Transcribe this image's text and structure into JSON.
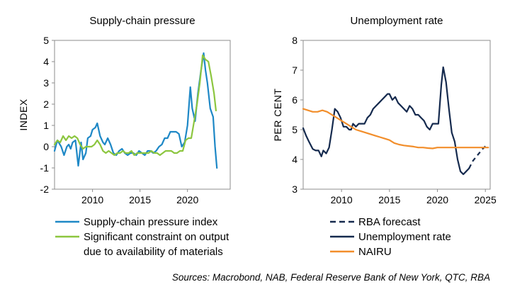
{
  "chart_data": [
    {
      "type": "line",
      "title": "Supply-chain pressure",
      "ylabel": "INDEX",
      "xlabel": "",
      "xlim": [
        2006,
        2024.5
      ],
      "ylim": [
        -2,
        5
      ],
      "x_ticks": [
        2010,
        2015,
        2020
      ],
      "y_ticks": [
        -2,
        -1,
        0,
        1,
        2,
        3,
        4,
        5
      ],
      "grid": false,
      "legend_position": "bottom",
      "series": [
        {
          "name": "Supply-chain pressure index",
          "color": "#1e88c6",
          "style": "solid",
          "points": [
            [
              2006.0,
              -0.2
            ],
            [
              2006.3,
              0.3
            ],
            [
              2006.7,
              0.0
            ],
            [
              2007.0,
              -0.4
            ],
            [
              2007.3,
              0.0
            ],
            [
              2007.5,
              0.1
            ],
            [
              2007.7,
              -0.1
            ],
            [
              2007.9,
              0.2
            ],
            [
              2008.2,
              0.3
            ],
            [
              2008.5,
              -0.9
            ],
            [
              2008.8,
              0.2
            ],
            [
              2009.0,
              -0.6
            ],
            [
              2009.3,
              -0.3
            ],
            [
              2009.5,
              0.4
            ],
            [
              2009.8,
              0.5
            ],
            [
              2010.0,
              0.8
            ],
            [
              2010.3,
              0.9
            ],
            [
              2010.5,
              1.1
            ],
            [
              2010.8,
              0.5
            ],
            [
              2011.1,
              0.2
            ],
            [
              2011.3,
              0.1
            ],
            [
              2011.6,
              0.4
            ],
            [
              2011.9,
              0.1
            ],
            [
              2012.2,
              -0.3
            ],
            [
              2012.5,
              -0.4
            ],
            [
              2012.8,
              -0.2
            ],
            [
              2013.1,
              -0.1
            ],
            [
              2013.4,
              -0.3
            ],
            [
              2013.7,
              -0.4
            ],
            [
              2014.0,
              -0.3
            ],
            [
              2014.3,
              -0.3
            ],
            [
              2014.6,
              -0.4
            ],
            [
              2014.9,
              -0.2
            ],
            [
              2015.2,
              -0.3
            ],
            [
              2015.5,
              -0.4
            ],
            [
              2015.8,
              -0.2
            ],
            [
              2016.1,
              -0.2
            ],
            [
              2016.4,
              -0.3
            ],
            [
              2016.7,
              -0.2
            ],
            [
              2017.0,
              0.0
            ],
            [
              2017.3,
              0.1
            ],
            [
              2017.6,
              0.4
            ],
            [
              2017.9,
              0.4
            ],
            [
              2018.2,
              0.7
            ],
            [
              2018.5,
              0.7
            ],
            [
              2018.8,
              0.7
            ],
            [
              2019.1,
              0.6
            ],
            [
              2019.4,
              0.0
            ],
            [
              2019.7,
              0.2
            ],
            [
              2020.0,
              1.0
            ],
            [
              2020.3,
              2.8
            ],
            [
              2020.5,
              1.8
            ],
            [
              2020.8,
              1.2
            ],
            [
              2021.1,
              2.5
            ],
            [
              2021.4,
              3.5
            ],
            [
              2021.7,
              4.4
            ],
            [
              2021.9,
              3.6
            ],
            [
              2022.1,
              3.0
            ],
            [
              2022.4,
              1.8
            ],
            [
              2022.7,
              1.4
            ],
            [
              2022.9,
              0.0
            ],
            [
              2023.1,
              -1.0
            ]
          ]
        },
        {
          "name": "Significant constraint on output due to availability of materials",
          "color": "#8cc63f",
          "style": "solid",
          "points": [
            [
              2006.0,
              0.1
            ],
            [
              2006.3,
              0.3
            ],
            [
              2006.6,
              0.2
            ],
            [
              2006.9,
              0.5
            ],
            [
              2007.2,
              0.3
            ],
            [
              2007.5,
              0.5
            ],
            [
              2007.8,
              0.4
            ],
            [
              2008.1,
              0.5
            ],
            [
              2008.4,
              0.4
            ],
            [
              2008.7,
              0.1
            ],
            [
              2009.0,
              -0.1
            ],
            [
              2009.3,
              0.0
            ],
            [
              2009.6,
              0.0
            ],
            [
              2009.9,
              0.0
            ],
            [
              2010.2,
              0.1
            ],
            [
              2010.5,
              0.3
            ],
            [
              2010.8,
              0.1
            ],
            [
              2011.1,
              -0.2
            ],
            [
              2011.4,
              -0.3
            ],
            [
              2011.7,
              -0.2
            ],
            [
              2012.0,
              -0.3
            ],
            [
              2012.3,
              -0.4
            ],
            [
              2012.6,
              -0.3
            ],
            [
              2012.9,
              -0.3
            ],
            [
              2013.2,
              -0.2
            ],
            [
              2013.5,
              -0.3
            ],
            [
              2013.8,
              -0.3
            ],
            [
              2014.1,
              -0.2
            ],
            [
              2014.4,
              -0.4
            ],
            [
              2014.7,
              -0.3
            ],
            [
              2015.0,
              -0.3
            ],
            [
              2015.3,
              -0.3
            ],
            [
              2015.6,
              -0.3
            ],
            [
              2015.9,
              -0.3
            ],
            [
              2016.2,
              -0.2
            ],
            [
              2016.5,
              -0.3
            ],
            [
              2016.8,
              -0.3
            ],
            [
              2017.1,
              -0.4
            ],
            [
              2017.4,
              -0.3
            ],
            [
              2017.7,
              -0.2
            ],
            [
              2018.0,
              -0.2
            ],
            [
              2018.3,
              -0.2
            ],
            [
              2018.6,
              -0.3
            ],
            [
              2018.9,
              -0.3
            ],
            [
              2019.2,
              -0.2
            ],
            [
              2019.5,
              -0.2
            ],
            [
              2019.8,
              0.3
            ],
            [
              2020.1,
              0.4
            ],
            [
              2020.4,
              0.4
            ],
            [
              2020.7,
              1.2
            ],
            [
              2021.0,
              2.0
            ],
            [
              2021.3,
              3.0
            ],
            [
              2021.6,
              4.3
            ],
            [
              2021.9,
              4.1
            ],
            [
              2022.2,
              4.0
            ],
            [
              2022.5,
              3.3
            ],
            [
              2022.8,
              2.5
            ],
            [
              2023.0,
              1.7
            ]
          ]
        }
      ],
      "legend": [
        {
          "lines": [
            "Supply-chain pressure index"
          ],
          "color": "#1e88c6",
          "style": "solid"
        },
        {
          "lines": [
            "Significant constraint on output",
            "due to availability of materials"
          ],
          "color": "#8cc63f",
          "style": "solid"
        }
      ]
    },
    {
      "type": "line",
      "title": "Unemployment rate",
      "ylabel": "PER CENT",
      "xlabel": "",
      "xlim": [
        2006,
        2025.5
      ],
      "ylim": [
        3,
        8
      ],
      "x_ticks": [
        2010,
        2015,
        2020,
        2025
      ],
      "y_ticks": [
        3,
        4,
        5,
        6,
        7,
        8
      ],
      "grid": false,
      "legend_position": "bottom",
      "series": [
        {
          "name": "RBA forecast",
          "color": "#152a4e",
          "style": "dashed",
          "points": [
            [
              2023.3,
              3.7
            ],
            [
              2023.7,
              3.95
            ],
            [
              2024.2,
              4.15
            ],
            [
              2024.7,
              4.35
            ],
            [
              2025.2,
              4.5
            ]
          ]
        },
        {
          "name": "Unemployment rate",
          "color": "#152a4e",
          "style": "solid",
          "points": [
            [
              2006.0,
              5.05
            ],
            [
              2006.3,
              4.8
            ],
            [
              2006.6,
              4.6
            ],
            [
              2007.0,
              4.35
            ],
            [
              2007.3,
              4.3
            ],
            [
              2007.6,
              4.3
            ],
            [
              2007.9,
              4.1
            ],
            [
              2008.1,
              4.3
            ],
            [
              2008.4,
              4.2
            ],
            [
              2008.7,
              4.4
            ],
            [
              2009.0,
              5.0
            ],
            [
              2009.3,
              5.7
            ],
            [
              2009.6,
              5.6
            ],
            [
              2009.9,
              5.4
            ],
            [
              2010.2,
              5.1
            ],
            [
              2010.5,
              5.1
            ],
            [
              2010.8,
              5.0
            ],
            [
              2011.0,
              5.0
            ],
            [
              2011.2,
              5.2
            ],
            [
              2011.5,
              5.1
            ],
            [
              2011.8,
              5.2
            ],
            [
              2012.1,
              5.2
            ],
            [
              2012.4,
              5.2
            ],
            [
              2012.7,
              5.4
            ],
            [
              2013.0,
              5.5
            ],
            [
              2013.3,
              5.7
            ],
            [
              2013.6,
              5.8
            ],
            [
              2013.9,
              5.9
            ],
            [
              2014.2,
              6.0
            ],
            [
              2014.5,
              6.1
            ],
            [
              2014.8,
              6.2
            ],
            [
              2015.0,
              6.2
            ],
            [
              2015.3,
              6.0
            ],
            [
              2015.6,
              6.1
            ],
            [
              2015.9,
              5.9
            ],
            [
              2016.2,
              5.8
            ],
            [
              2016.5,
              5.7
            ],
            [
              2016.8,
              5.6
            ],
            [
              2017.1,
              5.8
            ],
            [
              2017.4,
              5.7
            ],
            [
              2017.7,
              5.5
            ],
            [
              2018.0,
              5.5
            ],
            [
              2018.3,
              5.4
            ],
            [
              2018.6,
              5.3
            ],
            [
              2018.9,
              5.1
            ],
            [
              2019.2,
              5.0
            ],
            [
              2019.5,
              5.2
            ],
            [
              2019.8,
              5.2
            ],
            [
              2020.1,
              5.2
            ],
            [
              2020.4,
              6.5
            ],
            [
              2020.6,
              7.1
            ],
            [
              2020.9,
              6.6
            ],
            [
              2021.2,
              5.7
            ],
            [
              2021.5,
              4.9
            ],
            [
              2021.8,
              4.6
            ],
            [
              2022.1,
              4.0
            ],
            [
              2022.4,
              3.6
            ],
            [
              2022.7,
              3.5
            ],
            [
              2023.0,
              3.6
            ],
            [
              2023.3,
              3.7
            ]
          ]
        },
        {
          "name": "NAIRU",
          "color": "#f28e2b",
          "style": "solid",
          "points": [
            [
              2006.0,
              5.7
            ],
            [
              2006.5,
              5.65
            ],
            [
              2007.0,
              5.6
            ],
            [
              2007.5,
              5.6
            ],
            [
              2008.0,
              5.65
            ],
            [
              2008.5,
              5.6
            ],
            [
              2009.0,
              5.5
            ],
            [
              2009.5,
              5.4
            ],
            [
              2010.0,
              5.3
            ],
            [
              2010.5,
              5.2
            ],
            [
              2011.0,
              5.1
            ],
            [
              2011.5,
              5.0
            ],
            [
              2012.0,
              4.95
            ],
            [
              2012.5,
              4.9
            ],
            [
              2013.0,
              4.85
            ],
            [
              2013.5,
              4.8
            ],
            [
              2014.0,
              4.75
            ],
            [
              2014.5,
              4.7
            ],
            [
              2015.0,
              4.65
            ],
            [
              2015.5,
              4.55
            ],
            [
              2016.0,
              4.5
            ],
            [
              2016.5,
              4.47
            ],
            [
              2017.0,
              4.45
            ],
            [
              2017.5,
              4.43
            ],
            [
              2018.0,
              4.4
            ],
            [
              2018.5,
              4.4
            ],
            [
              2019.0,
              4.38
            ],
            [
              2019.5,
              4.37
            ],
            [
              2020.0,
              4.4
            ],
            [
              2020.5,
              4.4
            ],
            [
              2021.0,
              4.4
            ],
            [
              2022.0,
              4.4
            ],
            [
              2023.0,
              4.4
            ],
            [
              2024.0,
              4.4
            ],
            [
              2025.0,
              4.4
            ],
            [
              2025.3,
              4.4
            ]
          ]
        }
      ],
      "legend": [
        {
          "lines": [
            "RBA forecast"
          ],
          "color": "#152a4e",
          "style": "dashed"
        },
        {
          "lines": [
            "Unemployment rate"
          ],
          "color": "#152a4e",
          "style": "solid"
        },
        {
          "lines": [
            "NAIRU"
          ],
          "color": "#f28e2b",
          "style": "solid"
        }
      ]
    }
  ],
  "footer": {
    "sources": "Sources: Macrobond, NAB, Federal Reserve Bank of New York, QTC, RBA"
  }
}
